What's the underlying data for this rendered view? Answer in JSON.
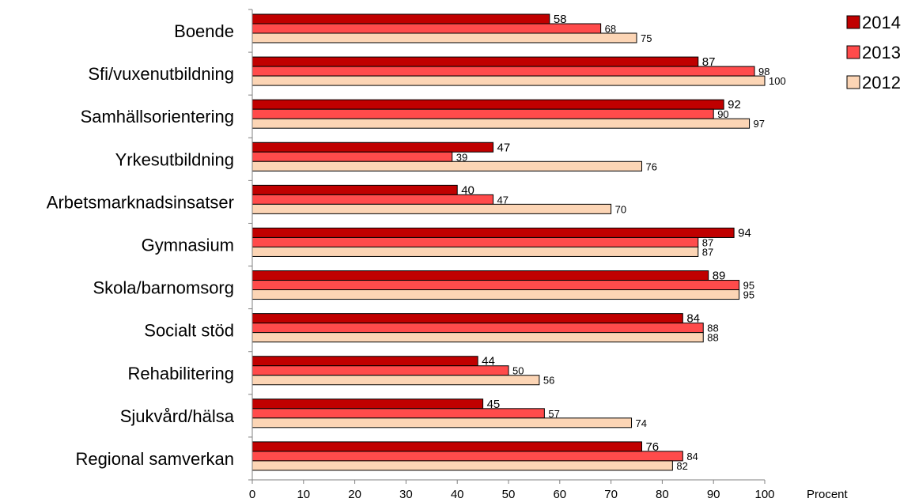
{
  "chart_data": {
    "type": "bar",
    "orientation": "horizontal",
    "categories": [
      "Boende",
      "Sfi/vuxenutbildning",
      "Samhällsorientering",
      "Yrkesutbildning",
      "Arbetsmarknadsinsatser",
      "Gymnasium",
      "Skola/barnomsorg",
      "Socialt stöd",
      "Rehabilitering",
      "Sjukvård/hälsa",
      "Regional samverkan"
    ],
    "series": [
      {
        "name": "2014",
        "color": "#C00000",
        "values": [
          58,
          87,
          92,
          47,
          40,
          94,
          89,
          84,
          44,
          45,
          76
        ]
      },
      {
        "name": "2013",
        "color": "#FF4B4B",
        "values": [
          68,
          98,
          90,
          39,
          47,
          87,
          95,
          88,
          50,
          57,
          84
        ]
      },
      {
        "name": "2012",
        "color": "#FCD5B5",
        "values": [
          75,
          100,
          97,
          76,
          70,
          87,
          95,
          88,
          56,
          74,
          82
        ]
      }
    ],
    "xlim": [
      0,
      100
    ],
    "xticks": [
      "0",
      "10",
      "20",
      "30",
      "40",
      "50",
      "60",
      "70",
      "80",
      "90",
      "100"
    ],
    "xlabel": "Procent",
    "legend": "top-right",
    "grid": false
  }
}
